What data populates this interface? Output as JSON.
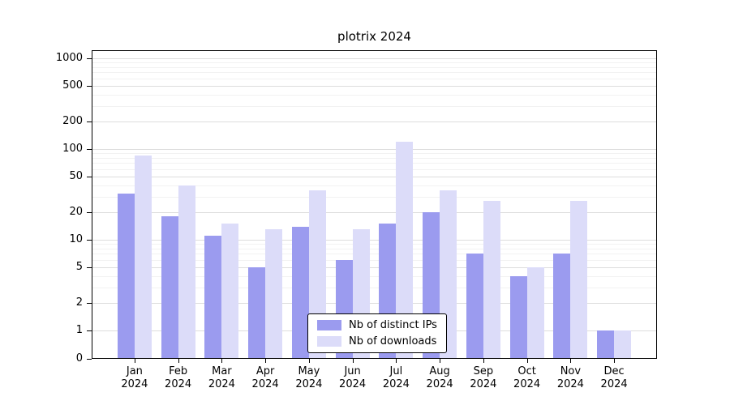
{
  "chart_data": {
    "type": "bar",
    "title": "plotrix 2024",
    "categories": [
      "Jan 2024",
      "Feb 2024",
      "Mar 2024",
      "Apr 2024",
      "May 2024",
      "Jun 2024",
      "Jul 2024",
      "Aug 2024",
      "Sep 2024",
      "Oct 2024",
      "Nov 2024",
      "Dec 2024"
    ],
    "series": [
      {
        "name": "Nb of distinct IPs",
        "color": "#9b9bef",
        "values": [
          32,
          18,
          11,
          5,
          14,
          6,
          15,
          20,
          7,
          4,
          7,
          1
        ]
      },
      {
        "name": "Nb of downloads",
        "color": "#dcdcf9",
        "values": [
          85,
          40,
          15,
          13,
          35,
          13,
          120,
          35,
          27,
          5,
          27,
          1
        ]
      }
    ],
    "yticks": [
      0,
      1,
      2,
      5,
      10,
      20,
      50,
      100,
      200,
      500,
      1000
    ],
    "yscale": "log",
    "ylim": [
      0,
      1000
    ],
    "grid": true,
    "legend_position": "bottom-center"
  }
}
